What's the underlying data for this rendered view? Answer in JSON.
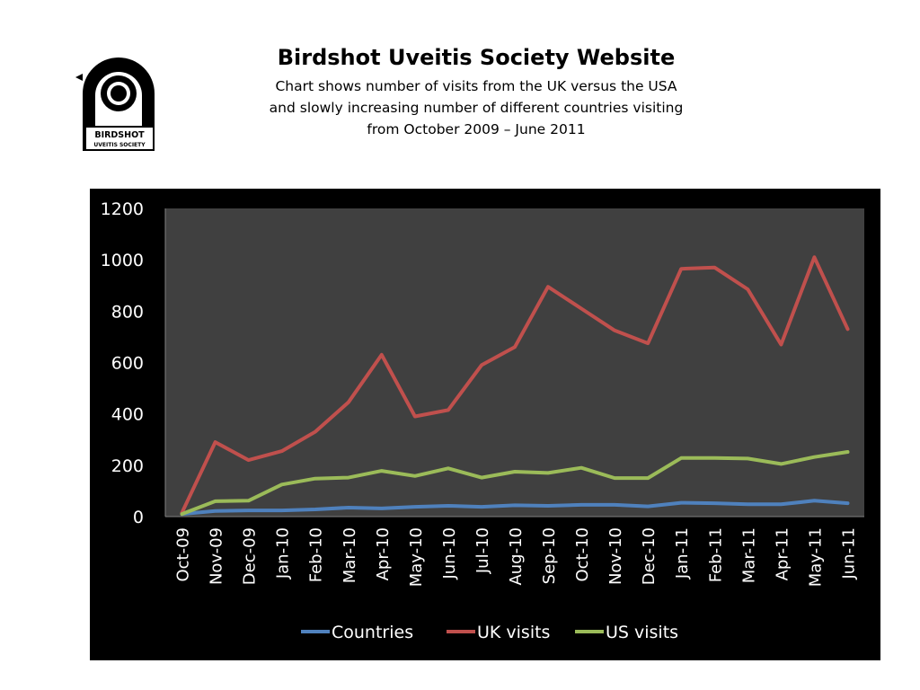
{
  "header": {
    "title": "Birdshot Uveitis Society Website",
    "subtitle_lines": [
      "Chart shows number of visits from the UK versus the USA",
      "and slowly increasing number of different countries visiting",
      "from October 2009 – June 2011"
    ]
  },
  "logo": {
    "line1": "BIRDSHOT",
    "line2": "UVEITIS SOCIETY"
  },
  "colors": {
    "plot_bg": "#404040",
    "frame_bg": "#000000",
    "axis_text": "#ffffff",
    "countries": "#4f81bd",
    "uk": "#c0504d",
    "us": "#9bbb59"
  },
  "chart_data": {
    "type": "line",
    "title": "",
    "xlabel": "",
    "ylabel": "",
    "ylim": [
      0,
      1200
    ],
    "yticks": [
      0,
      200,
      400,
      600,
      800,
      1000,
      1200
    ],
    "grid": false,
    "legend": "bottom",
    "categories": [
      "Oct-09",
      "Nov-09",
      "Dec-09",
      "Jan-10",
      "Feb-10",
      "Mar-10",
      "Apr-10",
      "May-10",
      "Jun-10",
      "Jul-10",
      "Aug-10",
      "Sep-10",
      "Oct-10",
      "Nov-10",
      "Dec-10",
      "Jan-11",
      "Feb-11",
      "Mar-11",
      "Apr-11",
      "May-11",
      "Jun-11"
    ],
    "series": [
      {
        "name": "Countries",
        "color": "#4f81bd",
        "values": [
          10,
          22,
          24,
          24,
          28,
          35,
          32,
          38,
          42,
          38,
          44,
          42,
          46,
          46,
          40,
          54,
          52,
          48,
          48,
          62,
          52
        ]
      },
      {
        "name": "UK visits",
        "color": "#c0504d",
        "values": [
          15,
          290,
          220,
          255,
          330,
          445,
          630,
          390,
          415,
          590,
          660,
          895,
          810,
          725,
          675,
          965,
          970,
          885,
          670,
          1010,
          730
        ]
      },
      {
        "name": "US visits",
        "color": "#9bbb59",
        "values": [
          10,
          60,
          62,
          125,
          148,
          152,
          178,
          158,
          188,
          152,
          175,
          170,
          190,
          150,
          150,
          228,
          228,
          226,
          205,
          232,
          252
        ]
      }
    ]
  }
}
